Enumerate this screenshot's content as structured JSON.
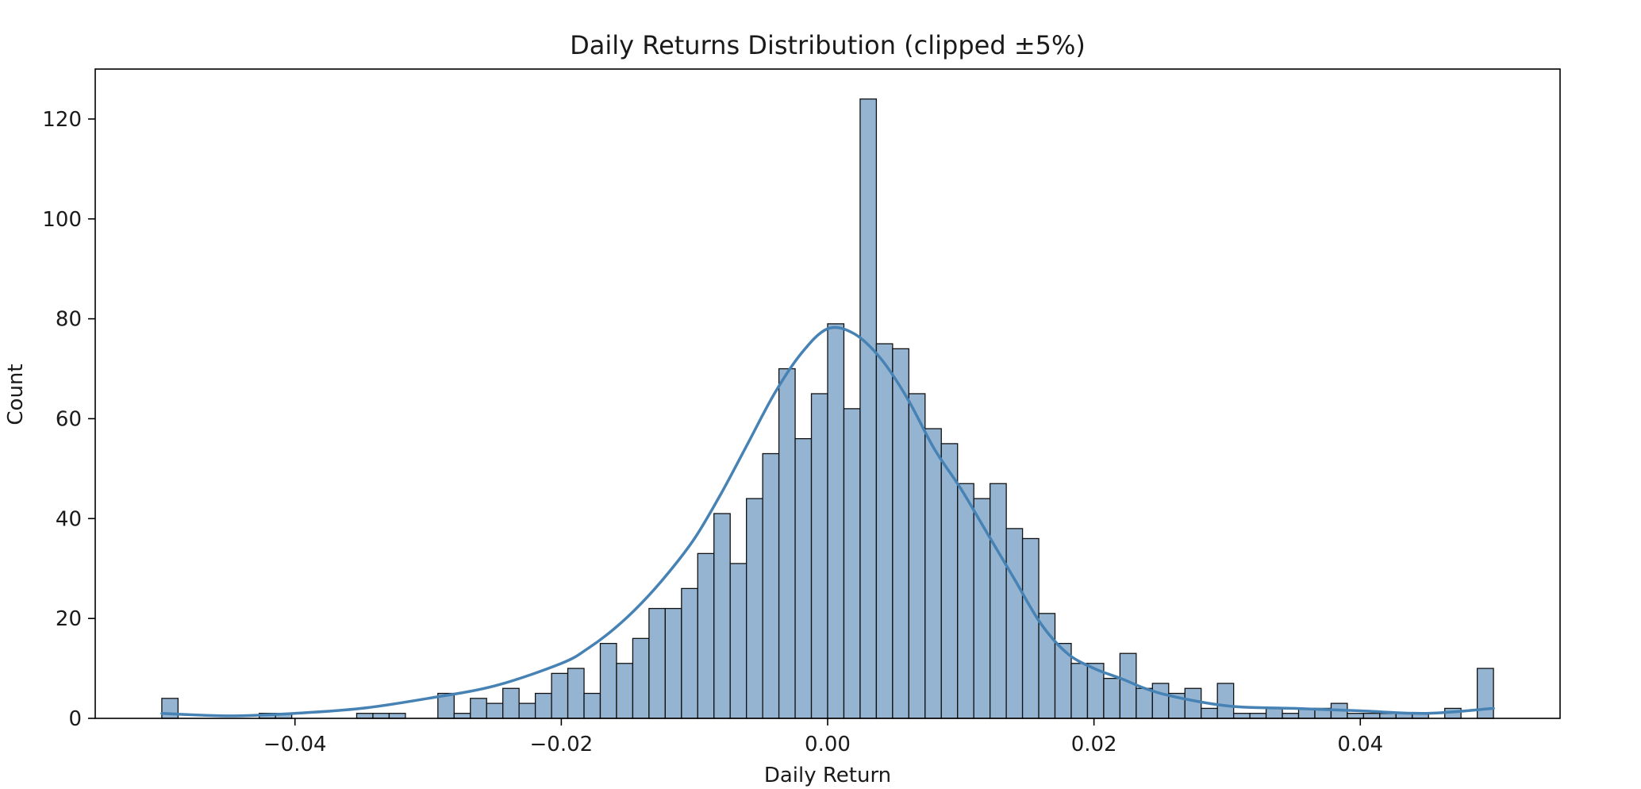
{
  "chart_data": {
    "type": "bar",
    "title": "Daily Returns Distribution (clipped ±5%)",
    "xlabel": "Daily Return",
    "ylabel": "Count",
    "xlim": [
      -0.055,
      0.055
    ],
    "ylim": [
      0,
      130
    ],
    "x_ticks": [
      -0.04,
      -0.02,
      0.0,
      0.02,
      0.04
    ],
    "x_tick_labels": [
      "−0.04",
      "−0.02",
      "0.00",
      "0.02",
      "0.04"
    ],
    "y_ticks": [
      0,
      20,
      40,
      60,
      80,
      100,
      120
    ],
    "y_tick_labels": [
      "0",
      "20",
      "40",
      "60",
      "80",
      "100",
      "120"
    ],
    "bins": {
      "start": -0.05,
      "end": 0.05,
      "counts": [
        4,
        0,
        0,
        0,
        0,
        0,
        1,
        1,
        0,
        0,
        0,
        0,
        1,
        1,
        1,
        0,
        0,
        5,
        1,
        4,
        3,
        6,
        3,
        5,
        9,
        10,
        5,
        15,
        11,
        16,
        22,
        22,
        26,
        33,
        41,
        31,
        44,
        53,
        70,
        56,
        65,
        79,
        62,
        124,
        75,
        74,
        65,
        58,
        55,
        47,
        44,
        47,
        38,
        36,
        21,
        15,
        11,
        11,
        8,
        13,
        6,
        7,
        5,
        6,
        2,
        7,
        1,
        1,
        2,
        1,
        2,
        2,
        3,
        1,
        1,
        1,
        1,
        1,
        0,
        2,
        0,
        10
      ]
    },
    "kde": {
      "x": [
        -0.05,
        -0.045,
        -0.04,
        -0.035,
        -0.03,
        -0.025,
        -0.02,
        -0.018,
        -0.016,
        -0.014,
        -0.012,
        -0.01,
        -0.008,
        -0.006,
        -0.004,
        -0.002,
        0.0,
        0.002,
        0.004,
        0.006,
        0.008,
        0.01,
        0.012,
        0.014,
        0.016,
        0.018,
        0.02,
        0.022,
        0.025,
        0.03,
        0.035,
        0.04,
        0.045,
        0.05
      ],
      "y": [
        1,
        0.5,
        1,
        2,
        4,
        6.5,
        11,
        14,
        18,
        23,
        29,
        36,
        45,
        55,
        65,
        73,
        78,
        77,
        72,
        64,
        54,
        46,
        37,
        28,
        19,
        13,
        10,
        8,
        5,
        2.5,
        2,
        1.5,
        1,
        2
      ]
    },
    "grid": false,
    "legend": "none",
    "colors": {
      "bar_fill": "#94b4d2",
      "bar_edge": "#111111",
      "kde_line": "#4682b4",
      "axis": "#000000",
      "text": "#1a1a1a"
    }
  }
}
